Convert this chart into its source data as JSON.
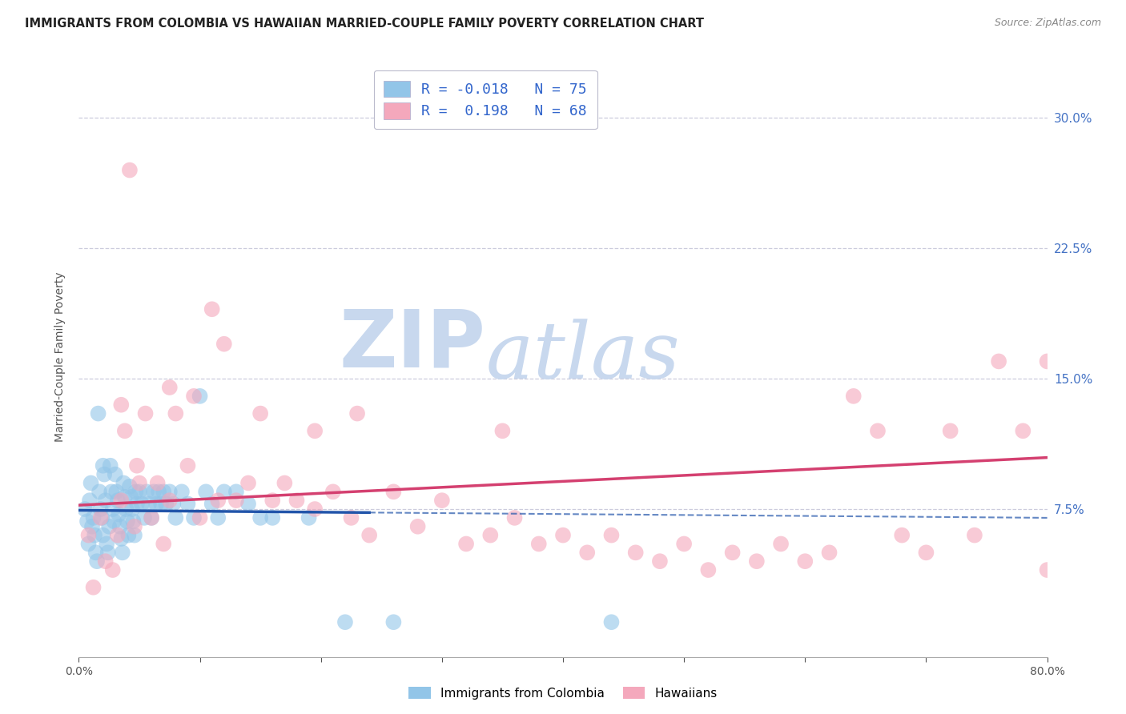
{
  "title": "IMMIGRANTS FROM COLOMBIA VS HAWAIIAN MARRIED-COUPLE FAMILY POVERTY CORRELATION CHART",
  "source": "Source: ZipAtlas.com",
  "ylabel": "Married-Couple Family Poverty",
  "right_ytick_vals": [
    0.0,
    0.075,
    0.15,
    0.225,
    0.3
  ],
  "right_ytick_labels": [
    "",
    "7.5%",
    "15.0%",
    "22.5%",
    "30.0%"
  ],
  "xlim": [
    0.0,
    0.8
  ],
  "ylim": [
    -0.01,
    0.335
  ],
  "colombia_R": -0.018,
  "colombia_N": 75,
  "hawaii_R": 0.198,
  "hawaii_N": 68,
  "colombia_color": "#92C5E8",
  "hawaii_color": "#F4A8BC",
  "colombia_line_color": "#2255AA",
  "hawaii_line_color": "#D44070",
  "background_color": "#FFFFFF",
  "grid_color": "#CCCCDD",
  "watermark_zip_color": "#C8D8EE",
  "watermark_atlas_color": "#C8D8EE",
  "legend_text_color": "#333333",
  "legend_value_color": "#3366CC",
  "right_axis_color": "#4472C4",
  "colombia_x": [
    0.005,
    0.007,
    0.008,
    0.009,
    0.01,
    0.011,
    0.012,
    0.013,
    0.014,
    0.015,
    0.016,
    0.017,
    0.018,
    0.019,
    0.02,
    0.02,
    0.021,
    0.022,
    0.023,
    0.024,
    0.025,
    0.026,
    0.027,
    0.028,
    0.029,
    0.03,
    0.031,
    0.032,
    0.033,
    0.034,
    0.035,
    0.036,
    0.037,
    0.038,
    0.039,
    0.04,
    0.041,
    0.042,
    0.043,
    0.044,
    0.045,
    0.046,
    0.047,
    0.048,
    0.05,
    0.052,
    0.054,
    0.056,
    0.058,
    0.06,
    0.062,
    0.064,
    0.066,
    0.068,
    0.07,
    0.072,
    0.075,
    0.078,
    0.08,
    0.085,
    0.09,
    0.095,
    0.1,
    0.105,
    0.11,
    0.115,
    0.12,
    0.13,
    0.14,
    0.15,
    0.16,
    0.19,
    0.22,
    0.26,
    0.44
  ],
  "colombia_y": [
    0.075,
    0.068,
    0.055,
    0.08,
    0.09,
    0.065,
    0.07,
    0.06,
    0.05,
    0.045,
    0.13,
    0.085,
    0.075,
    0.07,
    0.06,
    0.1,
    0.095,
    0.08,
    0.055,
    0.05,
    0.065,
    0.1,
    0.085,
    0.075,
    0.068,
    0.095,
    0.085,
    0.08,
    0.072,
    0.065,
    0.058,
    0.05,
    0.09,
    0.082,
    0.075,
    0.068,
    0.06,
    0.088,
    0.082,
    0.075,
    0.068,
    0.06,
    0.085,
    0.078,
    0.085,
    0.078,
    0.07,
    0.085,
    0.078,
    0.07,
    0.085,
    0.078,
    0.085,
    0.078,
    0.085,
    0.078,
    0.085,
    0.078,
    0.07,
    0.085,
    0.078,
    0.07,
    0.14,
    0.085,
    0.078,
    0.07,
    0.085,
    0.085,
    0.078,
    0.07,
    0.07,
    0.07,
    0.01,
    0.01,
    0.01
  ],
  "hawaii_x": [
    0.008,
    0.012,
    0.018,
    0.022,
    0.028,
    0.032,
    0.035,
    0.038,
    0.042,
    0.046,
    0.05,
    0.055,
    0.06,
    0.065,
    0.07,
    0.075,
    0.08,
    0.09,
    0.1,
    0.11,
    0.12,
    0.13,
    0.14,
    0.15,
    0.16,
    0.17,
    0.18,
    0.195,
    0.21,
    0.225,
    0.24,
    0.26,
    0.28,
    0.3,
    0.32,
    0.34,
    0.36,
    0.38,
    0.4,
    0.42,
    0.44,
    0.46,
    0.48,
    0.5,
    0.52,
    0.54,
    0.56,
    0.58,
    0.6,
    0.62,
    0.64,
    0.66,
    0.68,
    0.7,
    0.72,
    0.74,
    0.76,
    0.78,
    0.8,
    0.8,
    0.035,
    0.048,
    0.075,
    0.095,
    0.115,
    0.23,
    0.195,
    0.35
  ],
  "hawaii_y": [
    0.06,
    0.03,
    0.07,
    0.045,
    0.04,
    0.06,
    0.08,
    0.12,
    0.27,
    0.065,
    0.09,
    0.13,
    0.07,
    0.09,
    0.055,
    0.08,
    0.13,
    0.1,
    0.07,
    0.19,
    0.17,
    0.08,
    0.09,
    0.13,
    0.08,
    0.09,
    0.08,
    0.075,
    0.085,
    0.07,
    0.06,
    0.085,
    0.065,
    0.08,
    0.055,
    0.06,
    0.07,
    0.055,
    0.06,
    0.05,
    0.06,
    0.05,
    0.045,
    0.055,
    0.04,
    0.05,
    0.045,
    0.055,
    0.045,
    0.05,
    0.14,
    0.12,
    0.06,
    0.05,
    0.12,
    0.06,
    0.16,
    0.12,
    0.04,
    0.16,
    0.135,
    0.1,
    0.145,
    0.14,
    0.08,
    0.13,
    0.12,
    0.12
  ]
}
